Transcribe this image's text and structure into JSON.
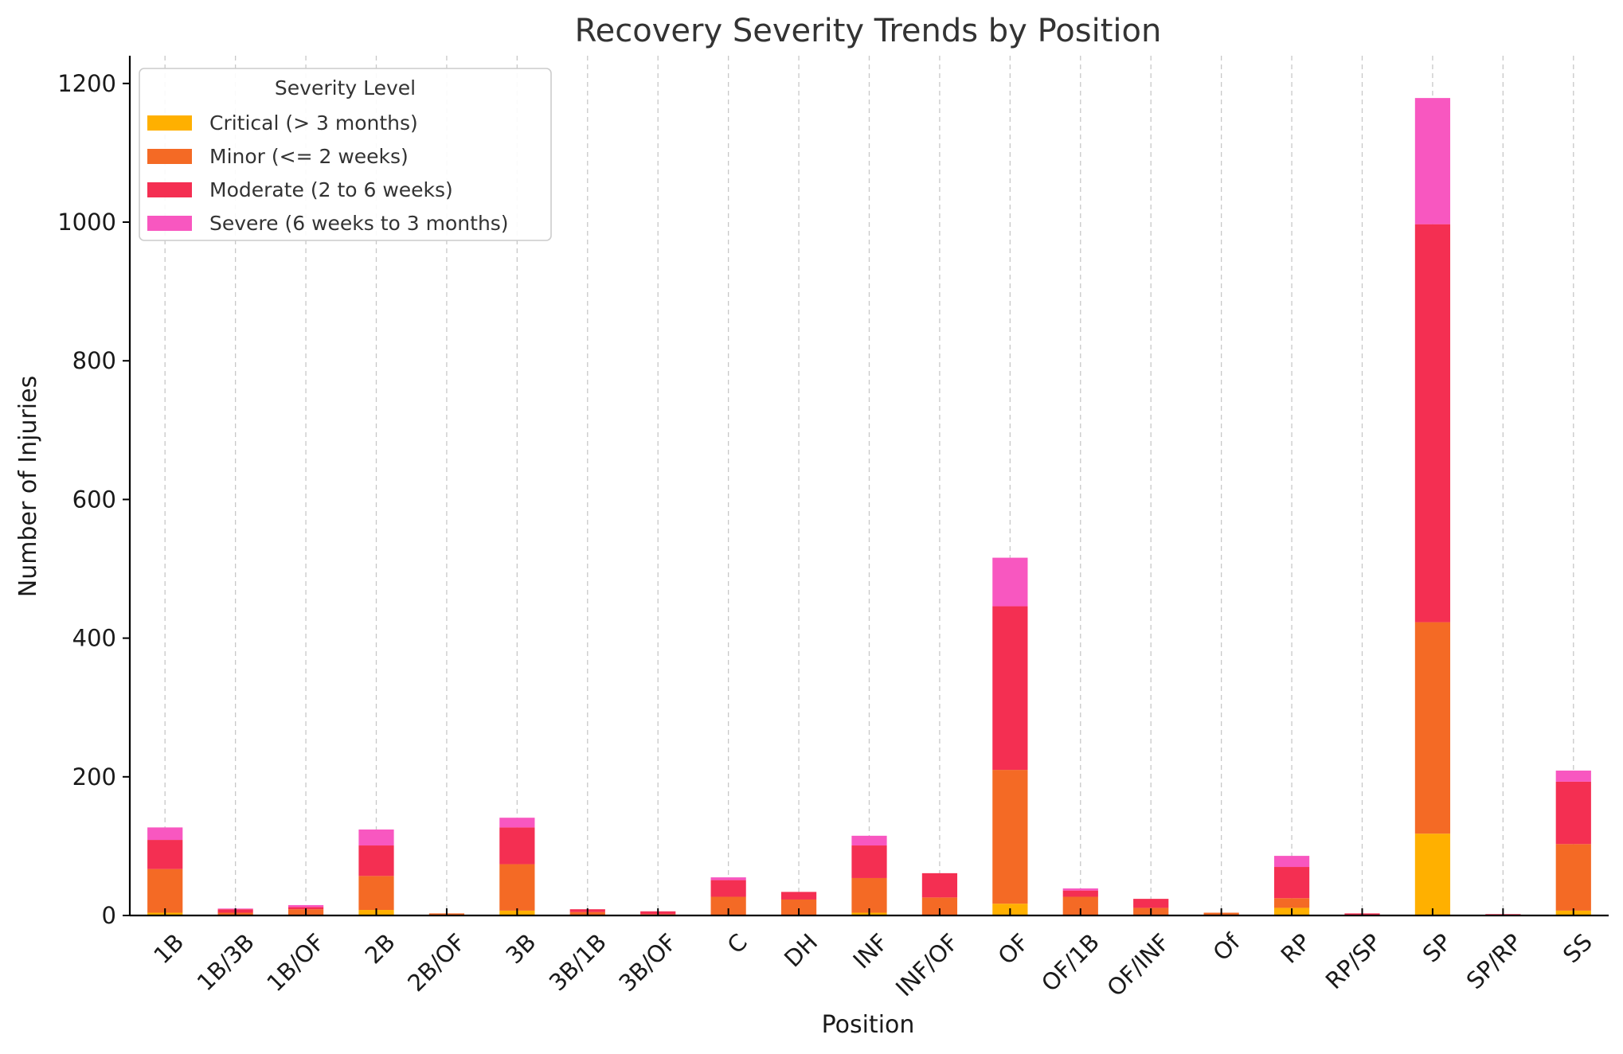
{
  "chart_data": {
    "type": "bar",
    "stacked": true,
    "title": "Recovery Severity Trends by Position",
    "xlabel": "Position",
    "ylabel": "Number of Injuries",
    "ylim": [
      0,
      1240
    ],
    "yticks": [
      0,
      200,
      400,
      600,
      800,
      1000,
      1200
    ],
    "grid": "vertical dashed",
    "legend": {
      "title": "Severity Level",
      "position": "top-left"
    },
    "categories": [
      "1B",
      "1B/3B",
      "1B/OF",
      "2B",
      "2B/OF",
      "3B",
      "3B/1B",
      "3B/OF",
      "C",
      "DH",
      "INF",
      "INF/OF",
      "OF",
      "OF/1B",
      "OF/INF",
      "Of",
      "RP",
      "RP/SP",
      "SP",
      "SP/RP",
      "SS"
    ],
    "series": [
      {
        "name": "Critical (> 3 months)",
        "color": "#FFB000",
        "values": [
          4,
          0,
          1,
          8,
          0,
          7,
          0,
          0,
          1,
          1,
          4,
          1,
          17,
          1,
          1,
          0,
          11,
          0,
          118,
          0,
          7
        ]
      },
      {
        "name": "Minor (<= 2 weeks)",
        "color": "#F46A25",
        "values": [
          63,
          4,
          8,
          49,
          3,
          67,
          5,
          2,
          26,
          22,
          50,
          25,
          193,
          26,
          10,
          4,
          14,
          1,
          305,
          1,
          96
        ]
      },
      {
        "name": "Moderate (2 to 6 weeks)",
        "color": "#F42F52",
        "values": [
          42,
          5,
          3,
          44,
          0,
          53,
          4,
          4,
          24,
          11,
          47,
          35,
          236,
          9,
          13,
          0,
          45,
          2,
          574,
          1,
          90
        ]
      },
      {
        "name": "Severe (6 weeks to 3 months)",
        "color": "#F857C0",
        "values": [
          18,
          1,
          3,
          23,
          0,
          14,
          0,
          0,
          4,
          0,
          14,
          0,
          70,
          3,
          0,
          0,
          16,
          0,
          182,
          0,
          16
        ]
      }
    ]
  }
}
